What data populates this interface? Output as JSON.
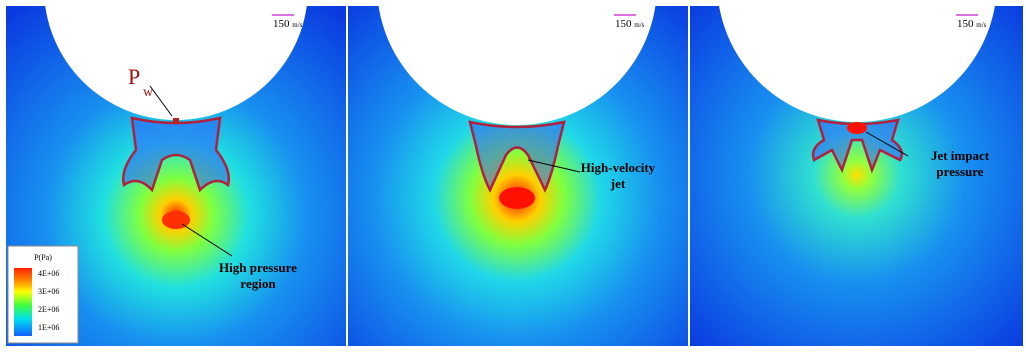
{
  "panels": [
    {
      "scale": {
        "speed": "150",
        "unit": "m/s"
      },
      "annotation": [
        "High pressure",
        "region"
      ],
      "point_label": {
        "main": "P",
        "sub": "w"
      }
    },
    {
      "scale": {
        "speed": "150",
        "unit": "m/s"
      },
      "annotation": [
        "High-velocity",
        "jet"
      ]
    },
    {
      "scale": {
        "speed": "150",
        "unit": "m/s"
      },
      "annotation": [
        "Jet impact",
        "pressure"
      ]
    }
  ],
  "legend": {
    "title": "P(Pa)",
    "labels": [
      "4E+06",
      "3E+06",
      "2E+06",
      "1E+06"
    ]
  }
}
